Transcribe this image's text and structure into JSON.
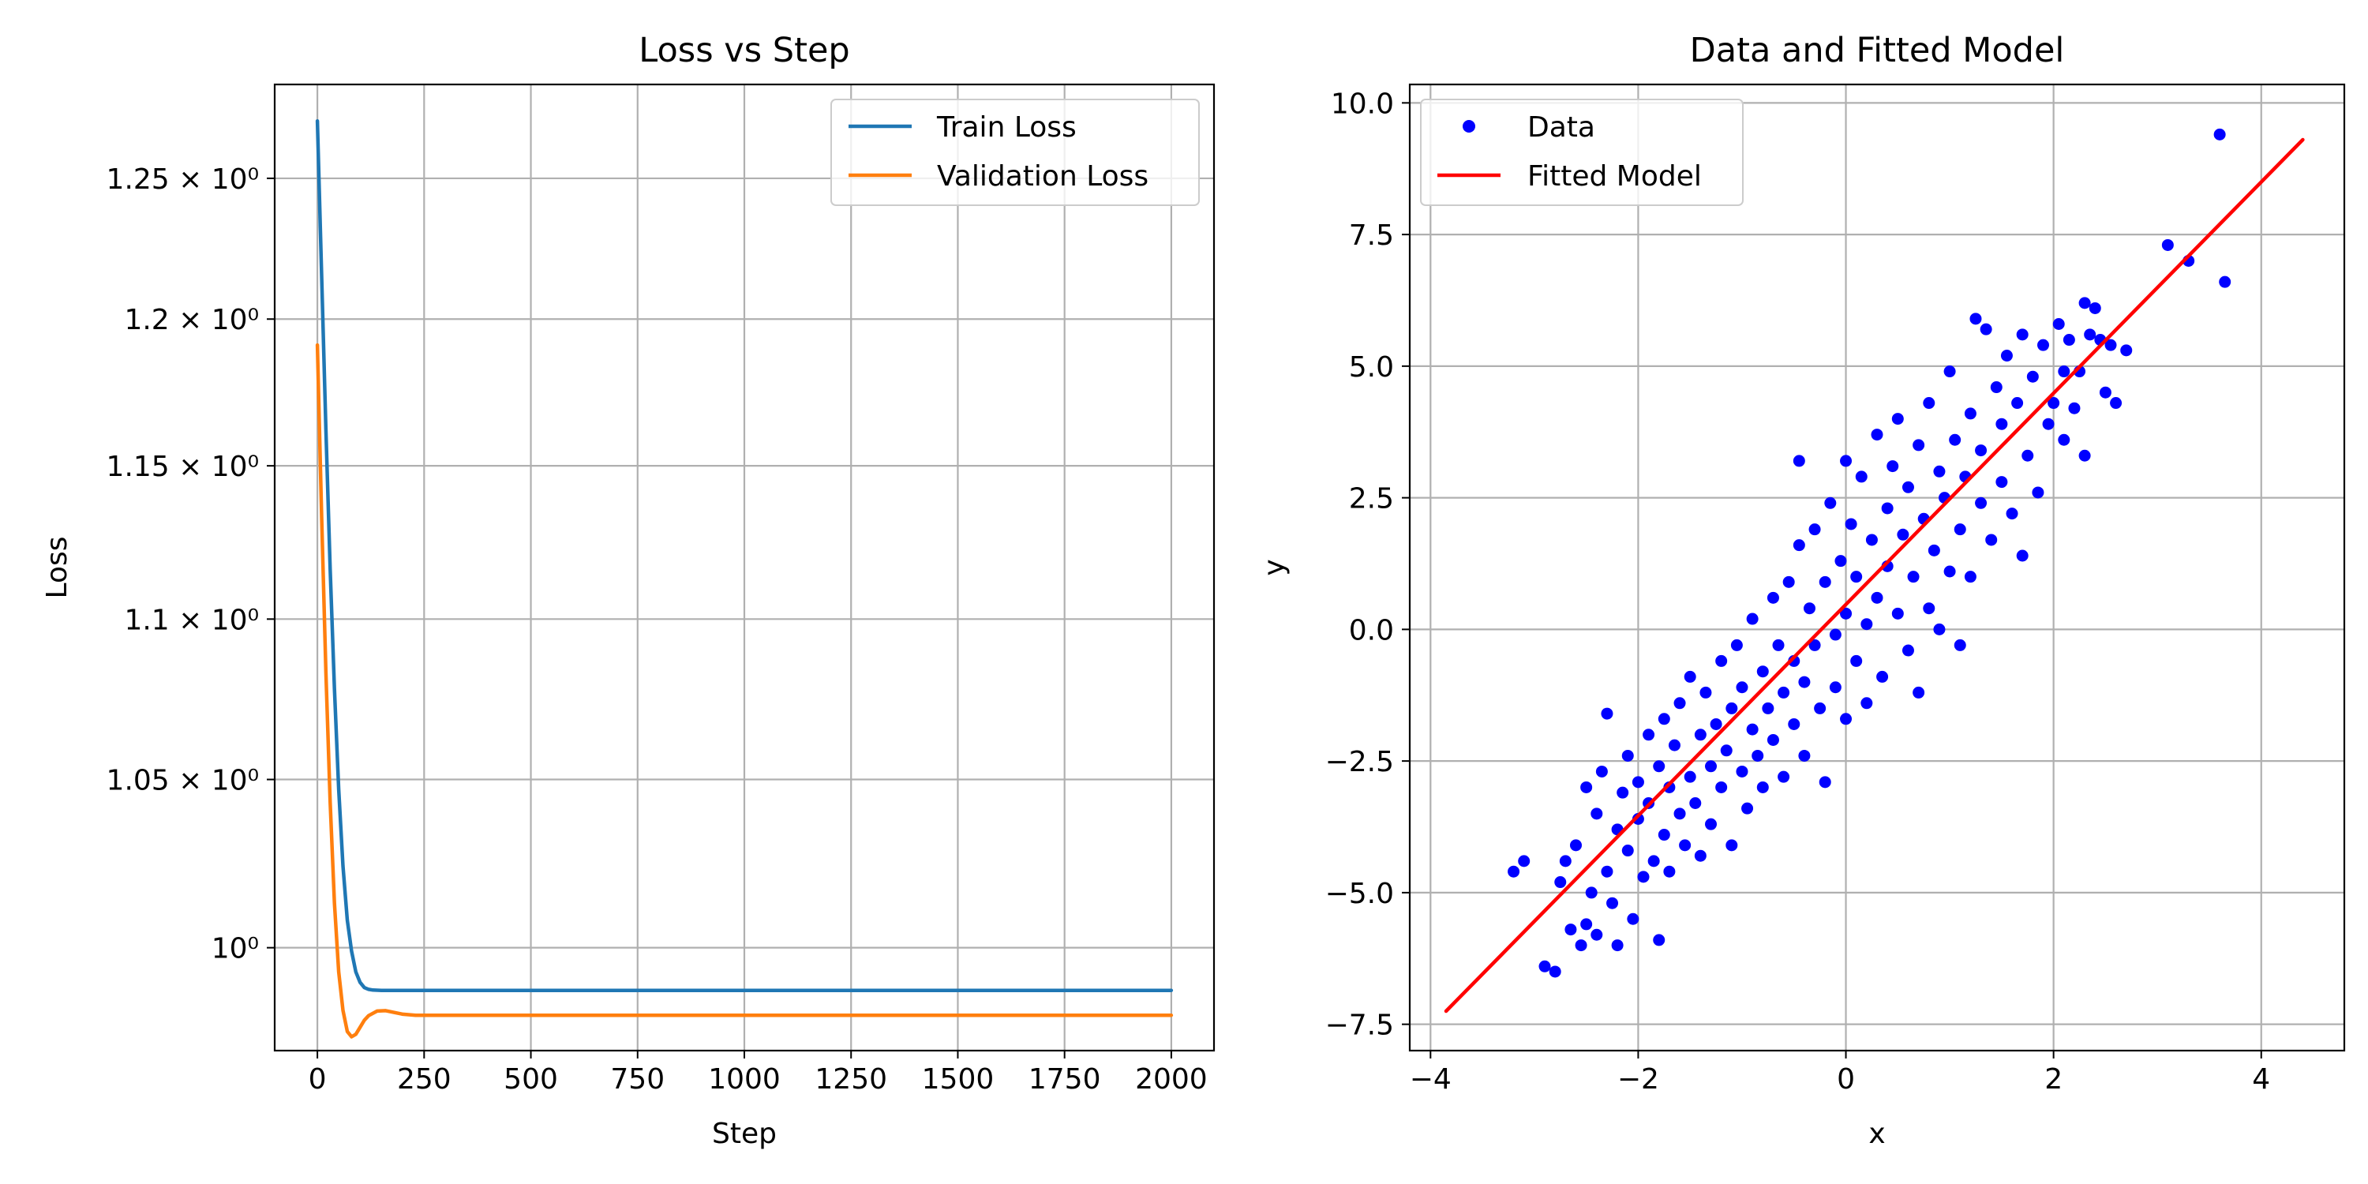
{
  "chart_data": [
    {
      "type": "line",
      "title": "Loss vs Step",
      "xlabel": "Step",
      "ylabel": "Loss",
      "xlim": [
        -100,
        2100
      ],
      "ylim": [
        0.9706,
        1.2845
      ],
      "yscale": "log",
      "xticks": [
        0,
        250,
        500,
        750,
        1000,
        1250,
        1500,
        1750,
        2000
      ],
      "xtick_labels": [
        "0",
        "250",
        "500",
        "750",
        "1000",
        "1250",
        "1500",
        "1750",
        "2000"
      ],
      "yticks": [
        1.0,
        1.05,
        1.1,
        1.15,
        1.2,
        1.25
      ],
      "ytick_labels": [
        "10⁰",
        "1.05 × 10⁰",
        "1.1 × 10⁰",
        "1.15 × 10⁰",
        "1.2 × 10⁰",
        "1.25 × 10⁰"
      ],
      "grid": true,
      "legend_position": "top-right",
      "series": [
        {
          "name": "Train Loss",
          "color": "#1f77b4",
          "x": [
            0,
            10,
            20,
            30,
            40,
            50,
            60,
            70,
            80,
            90,
            100,
            110,
            120,
            130,
            150,
            200,
            300,
            500,
            1000,
            1500,
            2000
          ],
          "y": [
            1.271,
            1.215,
            1.162,
            1.116,
            1.078,
            1.047,
            1.024,
            1.008,
            0.999,
            0.993,
            0.99,
            0.9885,
            0.988,
            0.9878,
            0.9877,
            0.9877,
            0.9877,
            0.9877,
            0.9877,
            0.9877,
            0.9877
          ]
        },
        {
          "name": "Validation Loss",
          "color": "#ff7f0e",
          "x": [
            0,
            10,
            20,
            30,
            40,
            50,
            60,
            70,
            80,
            90,
            100,
            110,
            120,
            140,
            160,
            180,
            200,
            230,
            260,
            300,
            400,
            600,
            1000,
            1500,
            2000
          ],
          "y": [
            1.191,
            1.133,
            1.083,
            1.043,
            1.013,
            0.993,
            0.982,
            0.976,
            0.9745,
            0.9752,
            0.9772,
            0.9792,
            0.9805,
            0.9818,
            0.9819,
            0.9814,
            0.9809,
            0.9806,
            0.9806,
            0.9806,
            0.9806,
            0.9806,
            0.9806,
            0.9806,
            0.9806
          ]
        }
      ]
    },
    {
      "type": "scatter",
      "title": "Data and Fitted Model",
      "xlabel": "x",
      "ylabel": "y",
      "xlim": [
        -4.2,
        4.8
      ],
      "ylim": [
        -8.0,
        10.35
      ],
      "xticks": [
        -4,
        -2,
        0,
        2,
        4
      ],
      "xtick_labels": [
        "−4",
        "−2",
        "0",
        "2",
        "4"
      ],
      "yticks": [
        -7.5,
        -5.0,
        -2.5,
        0.0,
        2.5,
        5.0,
        7.5,
        10.0
      ],
      "ytick_labels": [
        "−7.5",
        "−5.0",
        "−2.5",
        "0.0",
        "2.5",
        "5.0",
        "7.5",
        "10.0"
      ],
      "grid": true,
      "legend_position": "top-left",
      "series": [
        {
          "name": "Data",
          "color": "#0000ff",
          "points": [
            [
              -3.2,
              -4.6
            ],
            [
              -3.1,
              -4.4
            ],
            [
              -2.9,
              -6.4
            ],
            [
              -2.8,
              -6.5
            ],
            [
              -2.75,
              -4.8
            ],
            [
              -2.7,
              -4.4
            ],
            [
              -2.65,
              -5.7
            ],
            [
              -2.6,
              -4.1
            ],
            [
              -2.55,
              -6.0
            ],
            [
              -2.5,
              -5.6
            ],
            [
              -2.5,
              -3.0
            ],
            [
              -2.45,
              -5.0
            ],
            [
              -2.4,
              -3.5
            ],
            [
              -2.4,
              -5.8
            ],
            [
              -2.35,
              -2.7
            ],
            [
              -2.3,
              -4.6
            ],
            [
              -2.3,
              -1.6
            ],
            [
              -2.25,
              -5.2
            ],
            [
              -2.2,
              -3.8
            ],
            [
              -2.2,
              -6.0
            ],
            [
              -2.15,
              -3.1
            ],
            [
              -2.1,
              -4.2
            ],
            [
              -2.1,
              -2.4
            ],
            [
              -2.05,
              -5.5
            ],
            [
              -2.0,
              -3.6
            ],
            [
              -2.0,
              -2.9
            ],
            [
              -1.95,
              -4.7
            ],
            [
              -1.9,
              -2.0
            ],
            [
              -1.9,
              -3.3
            ],
            [
              -1.85,
              -4.4
            ],
            [
              -1.8,
              -2.6
            ],
            [
              -1.8,
              -5.9
            ],
            [
              -1.75,
              -1.7
            ],
            [
              -1.75,
              -3.9
            ],
            [
              -1.7,
              -3.0
            ],
            [
              -1.7,
              -4.6
            ],
            [
              -1.65,
              -2.2
            ],
            [
              -1.6,
              -3.5
            ],
            [
              -1.6,
              -1.4
            ],
            [
              -1.55,
              -4.1
            ],
            [
              -1.5,
              -2.8
            ],
            [
              -1.5,
              -0.9
            ],
            [
              -1.45,
              -3.3
            ],
            [
              -1.4,
              -2.0
            ],
            [
              -1.4,
              -4.3
            ],
            [
              -1.35,
              -1.2
            ],
            [
              -1.3,
              -2.6
            ],
            [
              -1.3,
              -3.7
            ],
            [
              -1.25,
              -1.8
            ],
            [
              -1.2,
              -0.6
            ],
            [
              -1.2,
              -3.0
            ],
            [
              -1.15,
              -2.3
            ],
            [
              -1.1,
              -1.5
            ],
            [
              -1.1,
              -4.1
            ],
            [
              -1.05,
              -0.3
            ],
            [
              -1.0,
              -2.7
            ],
            [
              -1.0,
              -1.1
            ],
            [
              -0.95,
              -3.4
            ],
            [
              -0.9,
              -1.9
            ],
            [
              -0.9,
              0.2
            ],
            [
              -0.85,
              -2.4
            ],
            [
              -0.8,
              -0.8
            ],
            [
              -0.8,
              -3.0
            ],
            [
              -0.75,
              -1.5
            ],
            [
              -0.7,
              0.6
            ],
            [
              -0.7,
              -2.1
            ],
            [
              -0.65,
              -0.3
            ],
            [
              -0.6,
              -1.2
            ],
            [
              -0.6,
              -2.8
            ],
            [
              -0.55,
              0.9
            ],
            [
              -0.5,
              -0.6
            ],
            [
              -0.5,
              -1.8
            ],
            [
              -0.45,
              1.6
            ],
            [
              -0.45,
              3.2
            ],
            [
              -0.4,
              -1.0
            ],
            [
              -0.4,
              -2.4
            ],
            [
              -0.35,
              0.4
            ],
            [
              -0.3,
              -0.3
            ],
            [
              -0.3,
              1.9
            ],
            [
              -0.25,
              -1.5
            ],
            [
              -0.2,
              0.9
            ],
            [
              -0.2,
              -2.9
            ],
            [
              -0.15,
              2.4
            ],
            [
              -0.1,
              -0.1
            ],
            [
              -0.1,
              -1.1
            ],
            [
              -0.05,
              1.3
            ],
            [
              0.0,
              0.3
            ],
            [
              0.0,
              -1.7
            ],
            [
              0.0,
              3.2
            ],
            [
              0.05,
              2.0
            ],
            [
              0.1,
              -0.6
            ],
            [
              0.1,
              1.0
            ],
            [
              0.15,
              2.9
            ],
            [
              0.2,
              0.1
            ],
            [
              0.2,
              -1.4
            ],
            [
              0.25,
              1.7
            ],
            [
              0.3,
              3.7
            ],
            [
              0.3,
              0.6
            ],
            [
              0.35,
              -0.9
            ],
            [
              0.4,
              2.3
            ],
            [
              0.4,
              1.2
            ],
            [
              0.45,
              3.1
            ],
            [
              0.5,
              0.3
            ],
            [
              0.5,
              4.0
            ],
            [
              0.55,
              1.8
            ],
            [
              0.6,
              -0.4
            ],
            [
              0.6,
              2.7
            ],
            [
              0.65,
              1.0
            ],
            [
              0.7,
              3.5
            ],
            [
              0.7,
              -1.2
            ],
            [
              0.75,
              2.1
            ],
            [
              0.8,
              0.4
            ],
            [
              0.8,
              4.3
            ],
            [
              0.85,
              1.5
            ],
            [
              0.9,
              3.0
            ],
            [
              0.9,
              0.0
            ],
            [
              0.95,
              2.5
            ],
            [
              1.0,
              1.1
            ],
            [
              1.0,
              4.9
            ],
            [
              1.05,
              3.6
            ],
            [
              1.1,
              1.9
            ],
            [
              1.1,
              -0.3
            ],
            [
              1.15,
              2.9
            ],
            [
              1.2,
              4.1
            ],
            [
              1.2,
              1.0
            ],
            [
              1.25,
              5.9
            ],
            [
              1.3,
              2.4
            ],
            [
              1.3,
              3.4
            ],
            [
              1.35,
              5.7
            ],
            [
              1.4,
              1.7
            ],
            [
              1.45,
              4.6
            ],
            [
              1.5,
              2.8
            ],
            [
              1.5,
              3.9
            ],
            [
              1.55,
              5.2
            ],
            [
              1.6,
              2.2
            ],
            [
              1.65,
              4.3
            ],
            [
              1.7,
              5.6
            ],
            [
              1.7,
              1.4
            ],
            [
              1.75,
              3.3
            ],
            [
              1.8,
              4.8
            ],
            [
              1.85,
              2.6
            ],
            [
              1.9,
              5.4
            ],
            [
              1.95,
              3.9
            ],
            [
              2.0,
              4.3
            ],
            [
              2.05,
              5.8
            ],
            [
              2.1,
              3.6
            ],
            [
              2.1,
              4.9
            ],
            [
              2.15,
              5.5
            ],
            [
              2.2,
              4.2
            ],
            [
              2.25,
              4.9
            ],
            [
              2.3,
              3.3
            ],
            [
              2.3,
              6.2
            ],
            [
              2.35,
              5.6
            ],
            [
              2.4,
              6.1
            ],
            [
              2.45,
              5.5
            ],
            [
              2.5,
              4.5
            ],
            [
              2.55,
              5.4
            ],
            [
              2.6,
              4.3
            ],
            [
              2.7,
              5.3
            ],
            [
              3.1,
              7.3
            ],
            [
              3.3,
              7.0
            ],
            [
              3.6,
              9.4
            ],
            [
              3.65,
              6.6
            ]
          ]
        },
        {
          "name": "Fitted Model",
          "color": "#ff0000",
          "x": [
            -3.85,
            4.4
          ],
          "y": [
            -7.25,
            9.3
          ]
        }
      ]
    }
  ]
}
